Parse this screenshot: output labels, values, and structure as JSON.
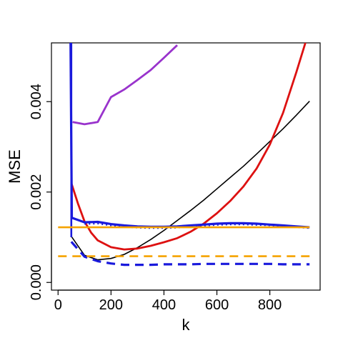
{
  "chart_data": {
    "type": "line",
    "title": "",
    "xlabel": "k",
    "ylabel": "MSE",
    "xlim": [
      -25,
      990
    ],
    "ylim": [
      -0.00017,
      0.0053
    ],
    "x_ticks": [
      0,
      200,
      400,
      600,
      800
    ],
    "x_tick_labels": [
      "0",
      "200",
      "400",
      "600",
      "800"
    ],
    "y_ticks": [
      0.0,
      0.002,
      0.004
    ],
    "y_tick_labels": [
      "0.000",
      "0.002",
      "0.004"
    ],
    "grid": false,
    "legend": "none",
    "series": [
      {
        "color": "#000000",
        "dash": "solid",
        "width": 1.6,
        "x": [
          50,
          100,
          150,
          200,
          250,
          300,
          350,
          400,
          450,
          500,
          550,
          600,
          650,
          700,
          750,
          800,
          850,
          900,
          950
        ],
        "y": [
          0.00102,
          0.0006,
          0.0005,
          0.00053,
          0.00062,
          0.00077,
          0.00095,
          0.00115,
          0.00137,
          0.00159,
          0.00182,
          0.00207,
          0.00232,
          0.00257,
          0.00284,
          0.00312,
          0.0034,
          0.0037,
          0.00401
        ]
      },
      {
        "color": "#dd1111",
        "dash": "solid",
        "width": 2.8,
        "x": [
          50,
          75,
          100,
          125,
          150,
          200,
          250,
          300,
          350,
          400,
          450,
          500,
          550,
          600,
          650,
          700,
          750,
          800,
          850,
          900,
          950
        ],
        "y": [
          0.0022,
          0.00175,
          0.00135,
          0.0011,
          0.00093,
          0.00078,
          0.00073,
          0.00075,
          0.00081,
          0.00089,
          0.00098,
          0.00112,
          0.0013,
          0.00153,
          0.0018,
          0.00212,
          0.00252,
          0.00305,
          0.00375,
          0.00465,
          0.0056
        ]
      },
      {
        "color": "#9933cc",
        "dash": "solid",
        "width": 2.8,
        "x": [
          55,
          100,
          150,
          200,
          250,
          300,
          350,
          400,
          450
        ],
        "y": [
          0.00355,
          0.0035,
          0.00355,
          0.0041,
          0.00427,
          0.00448,
          0.0047,
          0.00497,
          0.00525
        ]
      },
      {
        "color": "#1a1adc",
        "dash": "solid",
        "width": 3.2,
        "x": [
          47,
          52,
          100,
          150,
          200,
          250,
          300,
          350,
          400,
          450,
          500,
          550,
          600,
          650,
          700,
          750,
          800,
          850,
          900,
          950
        ],
        "y": [
          0.0054,
          0.00143,
          0.00133,
          0.00134,
          0.00129,
          0.00126,
          0.00124,
          0.00123,
          0.00123,
          0.00124,
          0.00126,
          0.00128,
          0.0013,
          0.00131,
          0.00131,
          0.0013,
          0.00128,
          0.00126,
          0.00124,
          0.00122
        ]
      },
      {
        "color": "#1a1adc",
        "dash": "dotted",
        "width": 3.2,
        "x": [
          100,
          150,
          200,
          250,
          300,
          350,
          400,
          450,
          500,
          550,
          600,
          650,
          700,
          750,
          800,
          850,
          900,
          950
        ],
        "y": [
          0.0013,
          0.00131,
          0.00127,
          0.00124,
          0.00122,
          0.00121,
          0.00121,
          0.00122,
          0.00124,
          0.00126,
          0.00128,
          0.00129,
          0.00129,
          0.00128,
          0.00127,
          0.00125,
          0.00123,
          0.00121
        ]
      },
      {
        "color": "#1a1adc",
        "dash": "dashed",
        "width": 3.2,
        "x": [
          50,
          100,
          150,
          200,
          250,
          300,
          350,
          400,
          450,
          500,
          550,
          600,
          650,
          700,
          750,
          800,
          850,
          900,
          950
        ],
        "y": [
          0.0009,
          0.00057,
          0.00047,
          0.00042,
          0.00039,
          0.00039,
          0.00039,
          0.0004,
          0.0004,
          0.0004,
          0.00041,
          0.00041,
          0.00041,
          0.00041,
          0.00041,
          0.00041,
          0.0004,
          0.0004,
          0.0004
        ]
      },
      {
        "color": "#1a1adc",
        "dash": "solid",
        "width": 2.6,
        "x": [
          50,
          50
        ],
        "y": [
          0.001,
          0.00535
        ]
      },
      {
        "color": "#f5a300",
        "dash": "solid",
        "width": 2.6,
        "x": [
          0,
          950
        ],
        "y": [
          0.00122,
          0.00122
        ]
      },
      {
        "color": "#f5a300",
        "dash": "dashed",
        "width": 2.6,
        "x": [
          0,
          950
        ],
        "y": [
          0.00058,
          0.00058
        ]
      }
    ]
  }
}
